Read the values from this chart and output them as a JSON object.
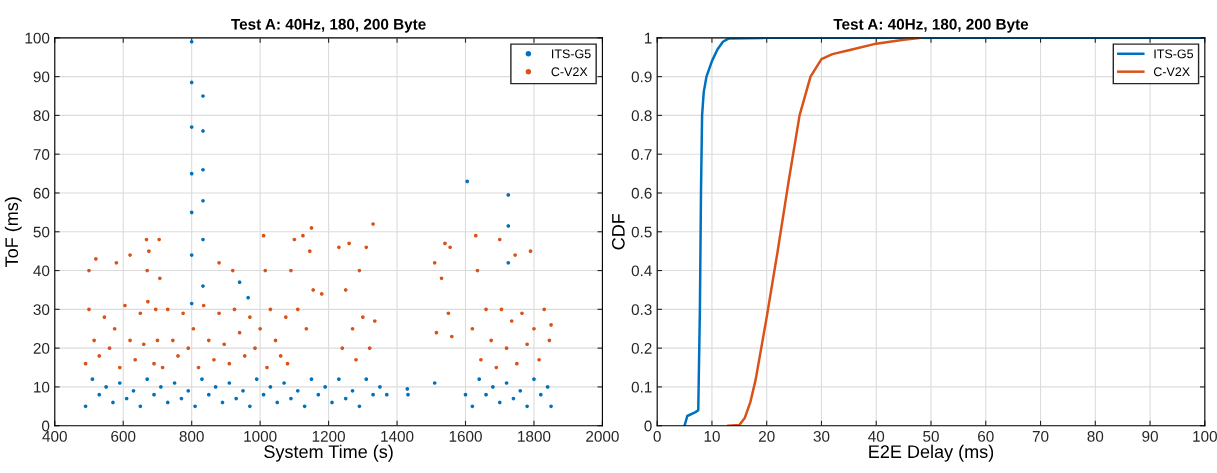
{
  "chart_data": [
    {
      "type": "scatter",
      "title": "Test A: 40Hz, 180, 200 Byte",
      "xlabel": "System Time (s)",
      "ylabel": "ToF (ms)",
      "xlim": [
        400,
        2000
      ],
      "xticks": [
        400,
        600,
        800,
        1000,
        1200,
        1400,
        1600,
        1800,
        2000
      ],
      "ylim": [
        0,
        100
      ],
      "yticks": [
        0,
        10,
        20,
        30,
        40,
        50,
        60,
        70,
        80,
        90,
        100
      ],
      "grid": true,
      "legend": "top right",
      "marker": "circle",
      "series": [
        {
          "name": "ITS-G5",
          "color": "#0072bd",
          "x": [
            490,
            510,
            530,
            550,
            570,
            590,
            610,
            630,
            650,
            670,
            690,
            710,
            730,
            750,
            770,
            790,
            810,
            830,
            850,
            870,
            890,
            910,
            930,
            950,
            970,
            990,
            1010,
            1030,
            1050,
            1070,
            1090,
            1110,
            1130,
            1150,
            1170,
            1190,
            1210,
            1230,
            1250,
            1270,
            1290,
            1310,
            1330,
            1350,
            1370,
            1600,
            1620,
            1640,
            1660,
            1680,
            1700,
            1720,
            1740,
            1760,
            1780,
            1800,
            1820,
            1840,
            1850,
            800,
            800,
            800,
            800,
            800,
            800,
            800,
            833,
            833,
            833,
            833,
            833,
            833,
            1605,
            1725,
            1725,
            1725,
            1430,
            1432,
            1510,
            940,
            965
          ],
          "values": [
            5,
            12,
            8,
            10,
            6,
            11,
            7,
            9,
            5,
            12,
            8,
            10,
            6,
            11,
            7,
            9,
            5,
            12,
            8,
            10,
            6,
            11,
            7,
            9,
            5,
            12,
            8,
            10,
            6,
            11,
            7,
            9,
            5,
            12,
            8,
            10,
            6,
            12,
            7,
            9,
            5,
            12,
            8,
            10,
            8,
            8,
            5,
            12,
            8,
            10,
            6,
            11,
            7,
            9,
            5,
            12,
            8,
            10,
            5,
            99,
            88.5,
            77,
            65,
            55,
            44,
            31.5,
            85,
            76,
            66,
            58,
            48,
            36,
            63,
            59.5,
            51.5,
            42,
            9.5,
            8,
            11,
            37,
            33
          ]
        },
        {
          "name": "C-V2X",
          "color": "#d95319",
          "x": [
            490,
            500,
            515,
            530,
            545,
            560,
            575,
            590,
            605,
            620,
            635,
            650,
            660,
            668,
            670,
            672,
            675,
            690,
            695,
            700,
            705,
            707,
            715,
            730,
            745,
            760,
            775,
            790,
            805,
            820,
            835,
            850,
            865,
            880,
            895,
            910,
            925,
            940,
            955,
            970,
            985,
            1000,
            1010,
            1015,
            1020,
            1030,
            1045,
            1060,
            1075,
            1080,
            1090,
            1100,
            1110,
            1125,
            1135,
            1145,
            1150,
            1155,
            1230,
            1240,
            1250,
            1260,
            1270,
            1280,
            1290,
            1300,
            1310,
            1320,
            1330,
            1335,
            1510,
            1515,
            1530,
            1540,
            1550,
            1560,
            1555,
            1620,
            1630,
            1635,
            1645,
            1660,
            1675,
            1690,
            1700,
            1705,
            1720,
            1735,
            1750,
            1765,
            1780,
            1790,
            1800,
            1815,
            1830,
            1845,
            1850,
            500,
            520,
            580,
            620,
            880,
            920,
            1180,
            1745
          ],
          "values": [
            16,
            30,
            22,
            18,
            28,
            20,
            25,
            15,
            31,
            22,
            17,
            29,
            21,
            48,
            40,
            32,
            45,
            16,
            30,
            22,
            48,
            38,
            15,
            30,
            22,
            18,
            29,
            20,
            25,
            15,
            31,
            22,
            17,
            29,
            21,
            16,
            30,
            24,
            18,
            28,
            20,
            25,
            49,
            40,
            15,
            30,
            22,
            18,
            28,
            16,
            40,
            48,
            30,
            49,
            25,
            45,
            51,
            35,
            46,
            20,
            35,
            47,
            25,
            17,
            40,
            28,
            46,
            20,
            52,
            27,
            42,
            24,
            38,
            47,
            29,
            23,
            46,
            25,
            49,
            40,
            17,
            30,
            22,
            15,
            48,
            30,
            20,
            27,
            16,
            29,
            21,
            45,
            25,
            17,
            30,
            22,
            26,
            40,
            43,
            42,
            44,
            42,
            40,
            34,
            44
          ]
        }
      ]
    },
    {
      "type": "line",
      "title": "Test A: 40Hz, 180, 200 Byte",
      "xlabel": "E2E Delay (ms)",
      "ylabel": "CDF",
      "xlim": [
        0,
        100
      ],
      "xticks": [
        0,
        10,
        20,
        30,
        40,
        50,
        60,
        70,
        80,
        90,
        100
      ],
      "ylim": [
        0,
        1
      ],
      "yticks": [
        0,
        0.1,
        0.2,
        0.3,
        0.4,
        0.5,
        0.6,
        0.7,
        0.8,
        0.9,
        1
      ],
      "grid": true,
      "legend": "top right",
      "series": [
        {
          "name": "ITS-G5",
          "color": "#0072bd",
          "x": [
            5,
            5.5,
            7,
            7.5,
            7.8,
            8,
            8.2,
            8.5,
            9,
            10,
            11,
            12,
            13,
            20,
            100
          ],
          "values": [
            0,
            0.025,
            0.035,
            0.04,
            0.3,
            0.6,
            0.8,
            0.86,
            0.9,
            0.94,
            0.97,
            0.99,
            0.998,
            1,
            1
          ]
        },
        {
          "name": "C-V2X",
          "color": "#d95319",
          "x": [
            13,
            15,
            16,
            17,
            18,
            19,
            20,
            22,
            24,
            26,
            28,
            30,
            32,
            35,
            40,
            45,
            48
          ],
          "values": [
            0,
            0.002,
            0.02,
            0.06,
            0.12,
            0.2,
            0.28,
            0.45,
            0.63,
            0.8,
            0.9,
            0.945,
            0.958,
            0.968,
            0.985,
            0.995,
            1
          ]
        }
      ]
    }
  ]
}
